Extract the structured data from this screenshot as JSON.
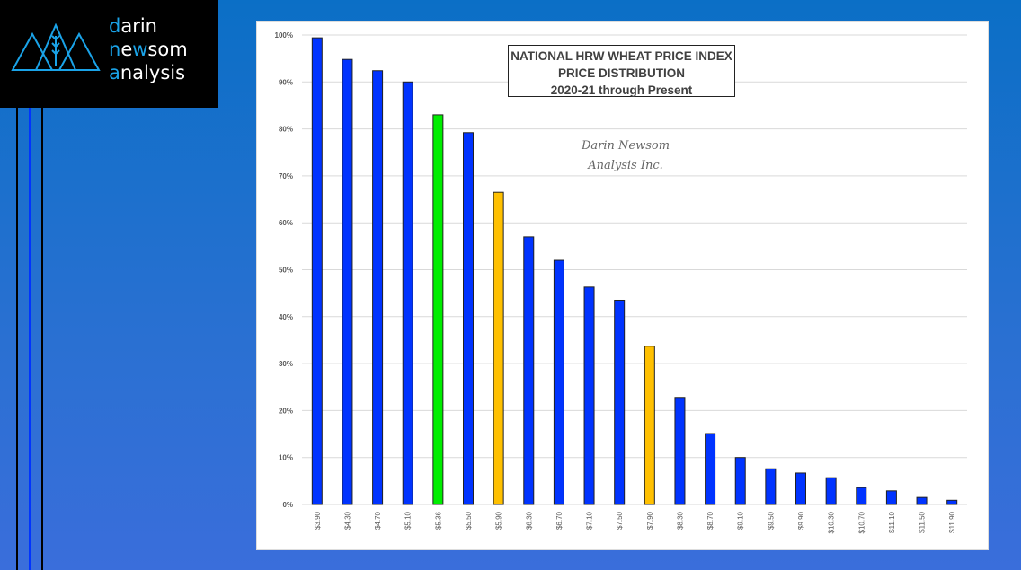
{
  "logo": {
    "line1_hl": "d",
    "line1": "arin",
    "line2_hl1": "n",
    "line2_mid1": "e",
    "line2_hl2": "w",
    "line2_rest": "som",
    "line3_hl": "a",
    "line3": "nalysis"
  },
  "colors": {
    "blue": "#0033ff",
    "green": "#00ee00",
    "gold": "#ffc000",
    "background": "#0b6fc6"
  },
  "chart_data": {
    "type": "bar",
    "title": [
      "NATIONAL HRW WHEAT PRICE INDEX",
      "PRICE DISTRIBUTION",
      "2020-21 through Present"
    ],
    "watermark": [
      "Darin Newsom",
      "Analysis Inc."
    ],
    "xlabel": "",
    "ylabel": "",
    "ylim": [
      0,
      100
    ],
    "yticks": [
      "0%",
      "10%",
      "20%",
      "30%",
      "40%",
      "50%",
      "60%",
      "70%",
      "80%",
      "90%",
      "100%"
    ],
    "grid": true,
    "categories": [
      "$3.90",
      "$4.30",
      "$4.70",
      "$5.10",
      "$5.36",
      "$5.50",
      "$5.90",
      "$6.30",
      "$6.70",
      "$7.10",
      "$7.50",
      "$7.90",
      "$8.30",
      "$8.70",
      "$9.10",
      "$9.50",
      "$9.90",
      "$10.30",
      "$10.70",
      "$11.10",
      "$11.50",
      "$11.90"
    ],
    "values": [
      99.4,
      94.8,
      92.4,
      90.0,
      83.0,
      79.2,
      66.5,
      57.0,
      52.0,
      46.3,
      43.5,
      33.7,
      22.8,
      15.1,
      10.0,
      7.6,
      6.7,
      5.7,
      3.6,
      2.9,
      1.5,
      0.9
    ],
    "bar_colors": [
      "blue",
      "blue",
      "blue",
      "blue",
      "green",
      "blue",
      "gold",
      "blue",
      "blue",
      "blue",
      "blue",
      "gold",
      "blue",
      "blue",
      "blue",
      "blue",
      "blue",
      "blue",
      "blue",
      "blue",
      "blue",
      "blue"
    ]
  }
}
